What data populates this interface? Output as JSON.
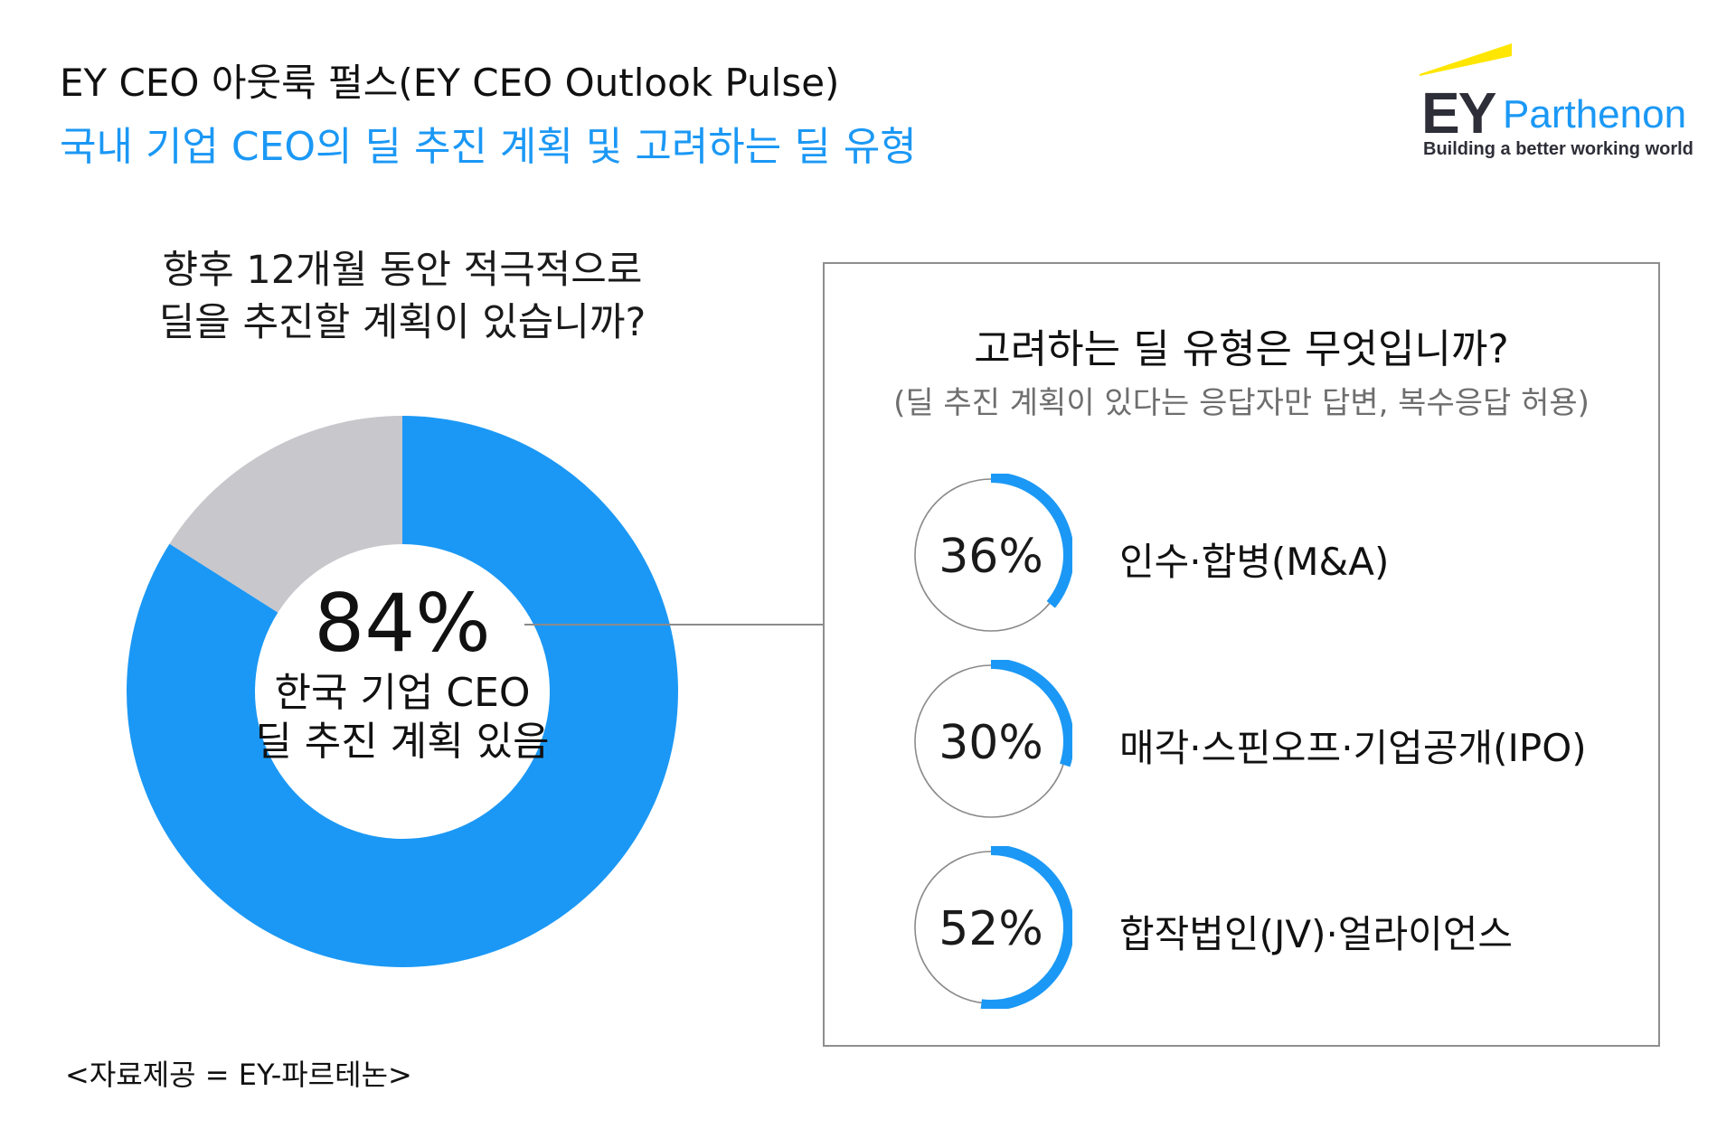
{
  "header": {
    "title": "EY CEO 아웃룩 펄스(EY CEO Outlook Pulse)",
    "subtitle": "국내 기업 CEO의 딜 추진 계획 및 고려하는 딜 유형"
  },
  "logo": {
    "mark": "EY",
    "brand": "Parthenon",
    "tagline": "Building a better working world"
  },
  "colors": {
    "accent": "#1b98f5",
    "remainder": "#c8c7cc",
    "ring_track": "#8a8a8a",
    "logo_beam": "#ffe600"
  },
  "chart_data": [
    {
      "type": "pie",
      "title_lines": [
        "향후 12개월 동안 적극적으로",
        "딜을 추진할 계획이 있습니까?"
      ],
      "values": [
        84,
        16
      ],
      "value_label": "84%",
      "center_caption_lines": [
        "한국 기업 CEO",
        "딜 추진 계획 있음"
      ]
    },
    {
      "type": "bar",
      "title": "고려하는 딜 유형은 무엇입니까?",
      "note": "(딜 추진 계획이 있다는 응답자만 답변, 복수응답 허용)",
      "categories": [
        "인수·합병(M&A)",
        "매각·스핀오프·기업공개(IPO)",
        "합작법인(JV)·얼라이언스"
      ],
      "values": [
        36,
        30,
        52
      ],
      "value_labels": [
        "36%",
        "30%",
        "52%"
      ]
    }
  ],
  "footer": {
    "source": "<자료제공 = EY-파르테논>"
  }
}
